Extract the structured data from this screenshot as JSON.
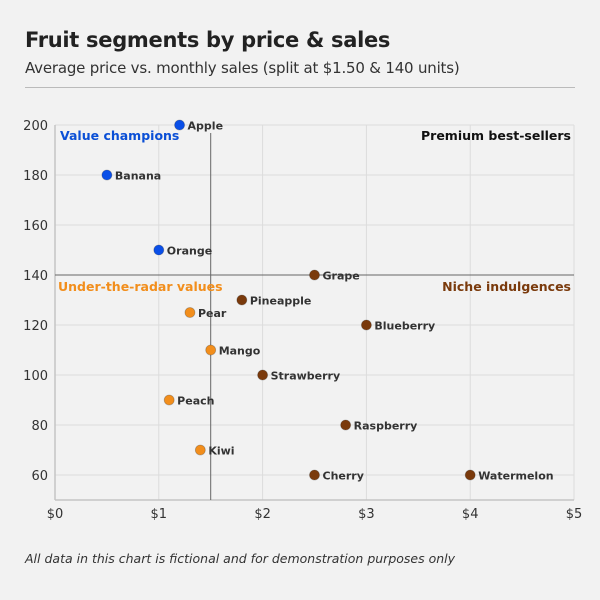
{
  "chart_data": {
    "type": "scatter",
    "title": "Fruit segments by price & sales",
    "subtitle": "Average price vs. monthly sales (split at $1.50 & 140 units)",
    "xlabel": "",
    "ylabel": "",
    "xlim": [
      0,
      5
    ],
    "ylim": [
      50,
      200
    ],
    "xticks": [
      0,
      1,
      2,
      3,
      4,
      5
    ],
    "xtick_labels": [
      "$0",
      "$1",
      "$2",
      "$3",
      "$4",
      "$5"
    ],
    "yticks": [
      60,
      80,
      100,
      120,
      140,
      160,
      180,
      200
    ],
    "ytick_labels": [
      "60",
      "80",
      "100",
      "120",
      "140",
      "160",
      "180",
      "200"
    ],
    "grid": true,
    "split": {
      "x": 1.5,
      "y": 140
    },
    "quadrants": [
      {
        "label": "Value champions",
        "position": "top-left",
        "color": "#0a4fd6"
      },
      {
        "label": "Premium best-sellers",
        "position": "top-right",
        "color": "#111111"
      },
      {
        "label": "Under-the-radar values",
        "position": "bottom-left",
        "color": "#f28e1c"
      },
      {
        "label": "Niche indulgences",
        "position": "bottom-right",
        "color": "#7a3a0c"
      }
    ],
    "colors": {
      "value": "#0a4fe8",
      "under": "#f28e1c",
      "niche": "#7a3a0c"
    },
    "points": [
      {
        "name": "Apple",
        "x": 1.2,
        "y": 200,
        "segment": "value"
      },
      {
        "name": "Banana",
        "x": 0.5,
        "y": 180,
        "segment": "value"
      },
      {
        "name": "Orange",
        "x": 1.0,
        "y": 150,
        "segment": "value"
      },
      {
        "name": "Grape",
        "x": 2.5,
        "y": 140,
        "segment": "niche"
      },
      {
        "name": "Pineapple",
        "x": 1.8,
        "y": 130,
        "segment": "niche"
      },
      {
        "name": "Pear",
        "x": 1.3,
        "y": 125,
        "segment": "under"
      },
      {
        "name": "Blueberry",
        "x": 3.0,
        "y": 120,
        "segment": "niche"
      },
      {
        "name": "Mango",
        "x": 1.5,
        "y": 110,
        "segment": "under"
      },
      {
        "name": "Strawberry",
        "x": 2.0,
        "y": 100,
        "segment": "niche"
      },
      {
        "name": "Peach",
        "x": 1.1,
        "y": 90,
        "segment": "under"
      },
      {
        "name": "Raspberry",
        "x": 2.8,
        "y": 80,
        "segment": "niche"
      },
      {
        "name": "Kiwi",
        "x": 1.4,
        "y": 70,
        "segment": "under"
      },
      {
        "name": "Cherry",
        "x": 2.5,
        "y": 60,
        "segment": "niche"
      },
      {
        "name": "Watermelon",
        "x": 4.0,
        "y": 60,
        "segment": "niche"
      }
    ],
    "footnote": "All data in this chart is fictional and for demonstration purposes only"
  }
}
